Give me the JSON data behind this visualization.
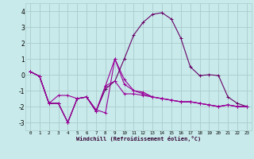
{
  "title": "",
  "xlabel": "Windchill (Refroidissement éolien,°C)",
  "background_color": "#c8eaea",
  "grid_color": "#aacccc",
  "line_color": "#990099",
  "line_color2": "#660066",
  "xlim": [
    -0.5,
    23.5
  ],
  "ylim": [
    -3.5,
    4.5
  ],
  "yticks": [
    -3,
    -2,
    -1,
    0,
    1,
    2,
    3,
    4
  ],
  "xticks": [
    0,
    1,
    2,
    3,
    4,
    5,
    6,
    7,
    8,
    9,
    10,
    11,
    12,
    13,
    14,
    15,
    16,
    17,
    18,
    19,
    20,
    21,
    22,
    23
  ],
  "series": [
    [
      0.2,
      -0.1,
      -1.8,
      -1.8,
      -3.0,
      -1.5,
      -1.4,
      -2.3,
      -0.7,
      1.0,
      -0.3,
      -1.0,
      -1.1,
      -1.4,
      -1.5,
      -1.6,
      -1.7,
      -1.7,
      -1.8,
      -1.9,
      -2.0,
      -1.9,
      -2.0,
      -2.0
    ],
    [
      0.2,
      -0.1,
      -1.8,
      -1.3,
      -1.3,
      -1.5,
      -1.4,
      -2.2,
      -2.4,
      1.0,
      -0.6,
      -1.0,
      -1.2,
      -1.4,
      -1.5,
      -1.6,
      -1.7,
      -1.7,
      -1.8,
      -1.9,
      -2.0,
      -1.9,
      -2.0,
      -2.0
    ],
    [
      0.2,
      -0.1,
      -1.8,
      -1.8,
      -3.0,
      -1.5,
      -1.4,
      -2.3,
      -0.9,
      -0.4,
      1.0,
      2.5,
      3.3,
      3.8,
      3.9,
      3.5,
      2.3,
      0.5,
      -0.05,
      0.0,
      -0.05,
      -1.4,
      -1.8,
      -2.0
    ],
    [
      0.2,
      -0.1,
      -1.8,
      -1.8,
      -3.0,
      -1.5,
      -1.4,
      -2.3,
      -0.7,
      -0.4,
      -1.2,
      -1.2,
      -1.3,
      -1.4,
      -1.5,
      -1.6,
      -1.7,
      -1.7,
      -1.8,
      -1.9,
      -2.0,
      -1.9,
      -2.0,
      -2.0
    ]
  ],
  "figsize": [
    3.2,
    2.0
  ],
  "dpi": 100
}
